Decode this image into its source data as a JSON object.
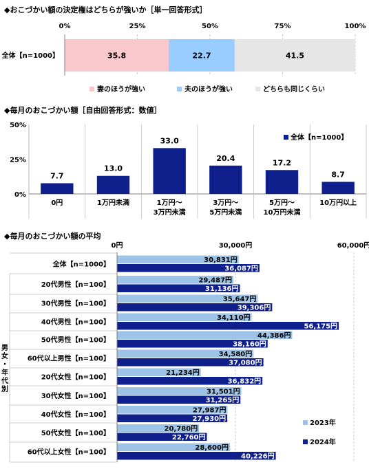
{
  "colors": {
    "wife": "#F8C8CC",
    "husband": "#99CCFF",
    "same": "#E6E6E6",
    "bar2024": "#0F1F8C",
    "bar2023": "#9DC3E6",
    "grid": "#BFBFBF",
    "axis": "#808080"
  },
  "chart_data": [
    {
      "type": "bar",
      "orientation": "horizontal",
      "stacked": true,
      "title": "◆おこづかい額の決定権はどちらが強いか［単一回答形式］",
      "categories": [
        "全体【n=1000】"
      ],
      "series": [
        {
          "name": "妻のほうが強い",
          "values": [
            35.8
          ]
        },
        {
          "name": "夫のほうが強い",
          "values": [
            22.7
          ]
        },
        {
          "name": "どちらも同じくらい",
          "values": [
            41.5
          ]
        }
      ],
      "xticks": [
        "0%",
        "25%",
        "50%",
        "75%",
        "100%"
      ],
      "xlim": [
        0,
        100
      ],
      "legend": "bottom"
    },
    {
      "type": "bar",
      "title": "◆毎月のおこづかい額［自由回答形式：数値］",
      "categories": [
        "0円",
        "1万円未満",
        "1万円～\n3万円未満",
        "3万円～\n5万円未満",
        "5万円～\n10万円未満",
        "10万円以上"
      ],
      "series": [
        {
          "name": "全体【n=1000】",
          "values": [
            7.7,
            13.0,
            33.0,
            20.4,
            17.2,
            8.7
          ]
        }
      ],
      "value_labels": [
        "7.7",
        "13.0",
        "33.0",
        "20.4",
        "17.2",
        "8.7"
      ],
      "yticks": [
        "0%",
        "25%",
        "50%"
      ],
      "ylim": [
        0,
        50
      ],
      "grid": false,
      "legend": "top-right"
    },
    {
      "type": "bar",
      "orientation": "horizontal",
      "title": "◆毎月のおこづかい額の平均",
      "categories": [
        "全体【n=1000】",
        "20代男性【n=100】",
        "30代男性【n=100】",
        "40代男性【n=100】",
        "50代男性【n=100】",
        "60代以上男性【n=100】",
        "20代女性【n=100】",
        "30代女性【n=100】",
        "40代女性【n=100】",
        "50代女性【n=100】",
        "60代以上女性【n=100】"
      ],
      "series": [
        {
          "name": "2023年",
          "values": [
            30831,
            29487,
            35647,
            34110,
            44386,
            34580,
            21234,
            31501,
            27987,
            20780,
            28600
          ]
        },
        {
          "name": "2024年",
          "values": [
            36087,
            31136,
            39306,
            56175,
            38160,
            37080,
            36832,
            31265,
            27930,
            22760,
            40226
          ]
        }
      ],
      "labels_2023": [
        "30,831円",
        "29,487円",
        "35,647円",
        "34,110円",
        "44,386円",
        "34,580円",
        "21,234円",
        "31,501円",
        "27,987円",
        "20,780円",
        "28,600円"
      ],
      "labels_2024": [
        "36,087円",
        "31,136円",
        "39,306円",
        "56,175円",
        "38,160円",
        "37,080円",
        "36,832円",
        "31,265円",
        "27,930円",
        "22,760円",
        "40,226円"
      ],
      "xticks": [
        "0円",
        "30,000円",
        "60,000円"
      ],
      "xlim": [
        0,
        60000
      ],
      "group_label": "男女・年代別",
      "legend": "bottom-right"
    }
  ]
}
